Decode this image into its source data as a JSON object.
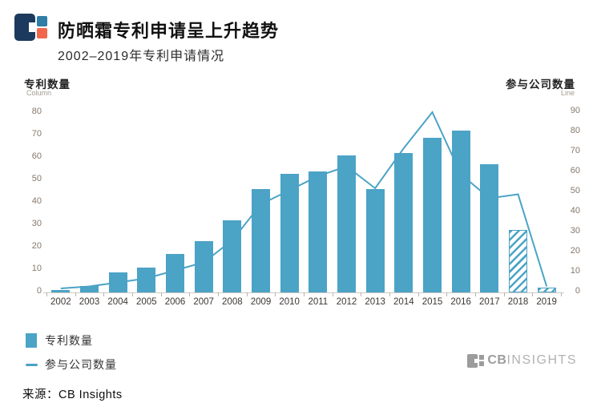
{
  "header": {
    "title": "防晒霜专利申请呈上升趋势",
    "subtitle": "2002–2019年专利申请情况"
  },
  "colors": {
    "accent": "#4BA3C6",
    "logo_navy": "#1C3A5E",
    "logo_blue": "#2E7EA6",
    "logo_orange": "#F1674B"
  },
  "legend": {
    "items": [
      {
        "swatch": "bar",
        "label": "专利数量"
      },
      {
        "swatch": "line",
        "label": "参与公司数量"
      }
    ]
  },
  "footer": {
    "source": "来源：CB Insights",
    "brand_bold": "CB",
    "brand_rest": "INSIGHTS"
  },
  "chart_data": {
    "type": "bar+line",
    "title": "防晒霜专利申请呈上升趋势",
    "subtitle": "2002–2019年专利申请情况",
    "categories": [
      "2002",
      "2003",
      "2004",
      "2005",
      "2006",
      "2007",
      "2008",
      "2009",
      "2010",
      "2011",
      "2012",
      "2013",
      "2014",
      "2015",
      "2016",
      "2017",
      "2018",
      "2019"
    ],
    "series": [
      {
        "name": "专利数量",
        "type": "bar",
        "axis": "left",
        "values": [
          1,
          3,
          9,
          11,
          17,
          23,
          32,
          46,
          53,
          54,
          61,
          46,
          62,
          69,
          72,
          57,
          28,
          2
        ],
        "hatched_categories": [
          "2018",
          "2019"
        ]
      },
      {
        "name": "参与公司数量",
        "type": "line",
        "axis": "right",
        "values": [
          2,
          3,
          5,
          7,
          11,
          15,
          26,
          44,
          51,
          58,
          63,
          52,
          72,
          90,
          59,
          47,
          49,
          3
        ]
      }
    ],
    "left_axis": {
      "title": "专利数量",
      "sublabel": "Column",
      "min": 0,
      "max": 80,
      "step": 10
    },
    "right_axis": {
      "title": "参与公司数量",
      "sublabel": "Line",
      "min": 0,
      "max": 90,
      "step": 10
    },
    "grid": false,
    "legend_position": "bottom-left"
  }
}
